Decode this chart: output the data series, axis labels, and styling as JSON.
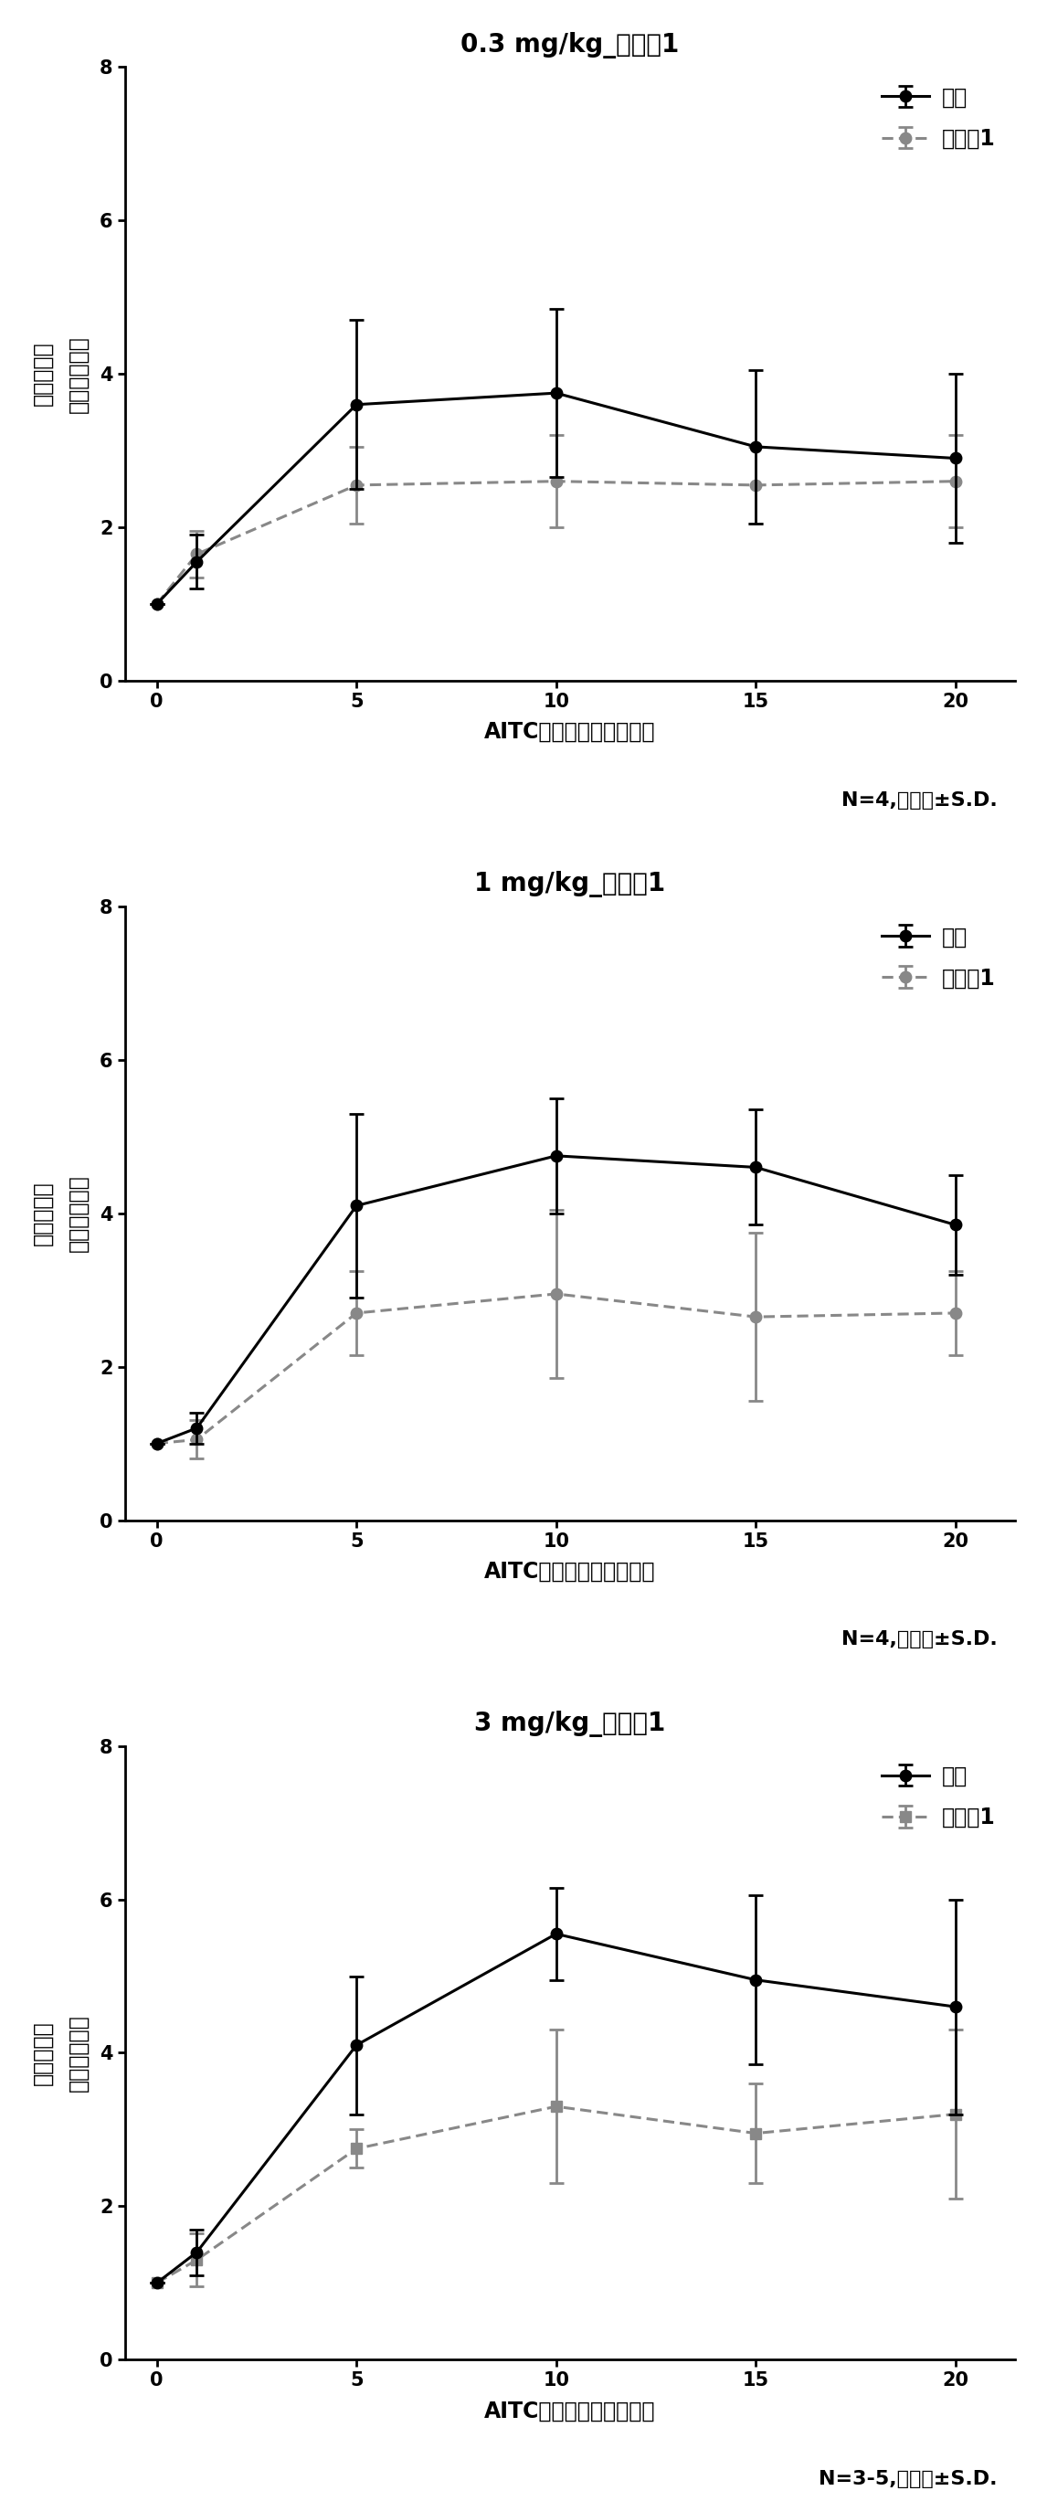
{
  "charts": [
    {
      "title": "0.3 mg/kg_实施例1",
      "note": "N=4,平均値±S.D.",
      "x": [
        0,
        1,
        5,
        10,
        15,
        20
      ],
      "vehicle_y": [
        1.0,
        1.55,
        3.6,
        3.75,
        3.05,
        2.9
      ],
      "vehicle_err": [
        0.0,
        0.35,
        1.1,
        1.1,
        1.0,
        1.1
      ],
      "example_y": [
        1.0,
        1.65,
        2.55,
        2.6,
        2.55,
        2.6
      ],
      "example_err": [
        0.0,
        0.3,
        0.5,
        0.6,
        0.5,
        0.6
      ],
      "example_marker": "o",
      "legend_example": "实施例1"
    },
    {
      "title": "1 mg/kg_实施例1",
      "note": "N=4,平均値±S.D.",
      "x": [
        0,
        1,
        5,
        10,
        15,
        20
      ],
      "vehicle_y": [
        1.0,
        1.2,
        4.1,
        4.75,
        4.6,
        3.85
      ],
      "vehicle_err": [
        0.0,
        0.2,
        1.2,
        0.75,
        0.75,
        0.65
      ],
      "example_y": [
        1.0,
        1.05,
        2.7,
        2.95,
        2.65,
        2.7
      ],
      "example_err": [
        0.0,
        0.25,
        0.55,
        1.1,
        1.1,
        0.55
      ],
      "example_marker": "o",
      "legend_example": "实施例1"
    },
    {
      "title": "3 mg/kg_实施例1",
      "note": "N=3-5,平均値±S.D.",
      "x": [
        0,
        1,
        5,
        10,
        15,
        20
      ],
      "vehicle_y": [
        1.0,
        1.4,
        4.1,
        5.55,
        4.95,
        4.6
      ],
      "vehicle_err": [
        0.0,
        0.3,
        0.9,
        0.6,
        1.1,
        1.4
      ],
      "example_y": [
        1.0,
        1.3,
        2.75,
        3.3,
        2.95,
        3.2
      ],
      "example_err": [
        0.0,
        0.35,
        0.25,
        1.0,
        0.65,
        1.1
      ],
      "example_marker": "s",
      "legend_example": "实施例1"
    }
  ],
  "xlabel": "AITC刺激后时间（分钟）",
  "ylabel": "血流量变化\n（倍数变化）",
  "vehicle_label": "介质",
  "line_color_vehicle": "#000000",
  "line_color_example": "#888888",
  "ylim": [
    0,
    8
  ],
  "yticks": [
    0,
    2,
    4,
    6,
    8
  ],
  "xticks": [
    0,
    5,
    10,
    15,
    20
  ],
  "title_fontsize": 20,
  "label_fontsize": 17,
  "tick_fontsize": 15,
  "legend_fontsize": 17,
  "note_fontsize": 16
}
